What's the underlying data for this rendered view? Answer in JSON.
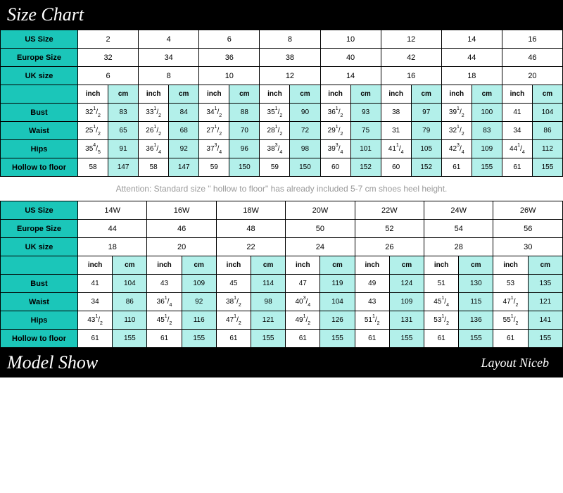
{
  "colors": {
    "header_bg": "#1bc6b9",
    "cm_bg": "#b3f0ea",
    "inch_bg": "#ffffff",
    "banner_bg": "#000000",
    "banner_fg": "#ffffff",
    "border": "#000000",
    "attention_fg": "#9a9a9a"
  },
  "banners": {
    "top": "Size Chart",
    "bottom": "Model Show",
    "brand": "Layout Niceb"
  },
  "attention": "Attention: Standard size \" hollow to floor\" has already included 5-7 cm shoes heel height.",
  "table1": {
    "row_labels": [
      "US Size",
      "Europe Size",
      "UK size",
      "",
      "Bust",
      "Waist",
      "Hips",
      "Hollow to floor"
    ],
    "unit_labels": [
      "inch",
      "cm"
    ],
    "sizes": {
      "us": [
        "2",
        "4",
        "6",
        "8",
        "10",
        "12",
        "14",
        "16"
      ],
      "europe": [
        "32",
        "34",
        "36",
        "38",
        "40",
        "42",
        "44",
        "46"
      ],
      "uk": [
        "6",
        "8",
        "10",
        "12",
        "14",
        "16",
        "18",
        "20"
      ]
    },
    "measurements": {
      "bust": {
        "inch": [
          "32 1/2",
          "33 1/2",
          "34 1/2",
          "35 1/2",
          "36 1/2",
          "38",
          "39 1/2",
          "41"
        ],
        "cm": [
          "83",
          "84",
          "88",
          "90",
          "93",
          "97",
          "100",
          "104"
        ]
      },
      "waist": {
        "inch": [
          "25 1/2",
          "26 1/2",
          "27 1/2",
          "28 1/2",
          "29 1/2",
          "31",
          "32 1/2",
          "34"
        ],
        "cm": [
          "65",
          "68",
          "70",
          "72",
          "75",
          "79",
          "83",
          "86"
        ]
      },
      "hips": {
        "inch": [
          "35 4/5",
          "36 1/4",
          "37 3/4",
          "38 3/4",
          "39 3/4",
          "41 1/4",
          "42 3/4",
          "44 1/4"
        ],
        "cm": [
          "91",
          "92",
          "96",
          "98",
          "101",
          "105",
          "109",
          "112"
        ]
      },
      "hollow": {
        "inch": [
          "58",
          "58",
          "59",
          "59",
          "60",
          "60",
          "61",
          "61"
        ],
        "cm": [
          "147",
          "147",
          "150",
          "150",
          "152",
          "152",
          "155",
          "155"
        ]
      }
    }
  },
  "table2": {
    "row_labels": [
      "US Size",
      "Europe Size",
      "UK size",
      "",
      "Bust",
      "Waist",
      "Hips",
      "Hollow to floor"
    ],
    "unit_labels": [
      "inch",
      "cm"
    ],
    "sizes": {
      "us": [
        "14W",
        "16W",
        "18W",
        "20W",
        "22W",
        "24W",
        "26W"
      ],
      "europe": [
        "44",
        "46",
        "48",
        "50",
        "52",
        "54",
        "56"
      ],
      "uk": [
        "18",
        "20",
        "22",
        "24",
        "26",
        "28",
        "30"
      ]
    },
    "measurements": {
      "bust": {
        "inch": [
          "41",
          "43",
          "45",
          "47",
          "49",
          "51",
          "53"
        ],
        "cm": [
          "104",
          "109",
          "114",
          "119",
          "124",
          "130",
          "135"
        ]
      },
      "waist": {
        "inch": [
          "34",
          "36 1/4",
          "38 1/2",
          "40 3/4",
          "43",
          "45 1/4",
          "47 1/2"
        ],
        "cm": [
          "86",
          "92",
          "98",
          "104",
          "109",
          "115",
          "121"
        ]
      },
      "hips": {
        "inch": [
          "43 1/2",
          "45 1/2",
          "47 1/2",
          "49 1/2",
          "51 1/2",
          "53 1/2",
          "55 1/2"
        ],
        "cm": [
          "110",
          "116",
          "121",
          "126",
          "131",
          "136",
          "141"
        ]
      },
      "hollow": {
        "inch": [
          "61",
          "61",
          "61",
          "61",
          "61",
          "61",
          "61"
        ],
        "cm": [
          "155",
          "155",
          "155",
          "155",
          "155",
          "155",
          "155"
        ]
      }
    }
  }
}
